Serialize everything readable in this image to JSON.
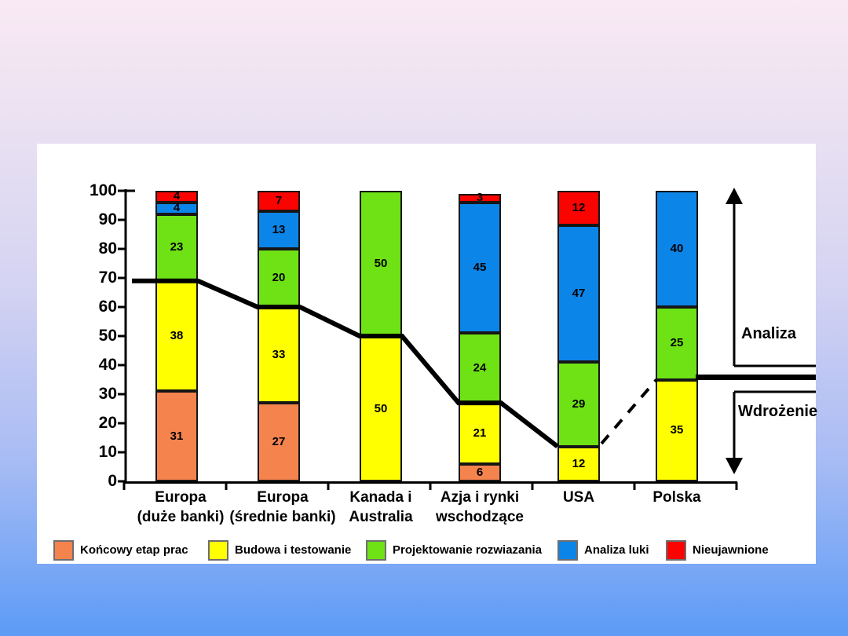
{
  "chart_data": {
    "type": "bar",
    "stacked": true,
    "title": "",
    "ylim": [
      0,
      100
    ],
    "yticks": [
      0,
      10,
      20,
      30,
      40,
      50,
      60,
      70,
      80,
      90,
      100
    ],
    "grid": false,
    "legend_position": "bottom",
    "categories": [
      {
        "lines": [
          "Europa",
          "(duże banki)"
        ]
      },
      {
        "lines": [
          "Europa",
          "(średnie banki)"
        ]
      },
      {
        "lines": [
          "Kanada i",
          "Australia"
        ]
      },
      {
        "lines": [
          "Azja i rynki",
          "wschodzące"
        ]
      },
      {
        "lines": [
          "USA"
        ]
      },
      {
        "lines": [
          "Polska"
        ]
      }
    ],
    "series": [
      {
        "name": "Końcowy etap prac",
        "color": "#f5834e",
        "values": [
          31,
          27,
          0,
          6,
          0,
          0
        ]
      },
      {
        "name": "Budowa i testowanie",
        "color": "#ffff00",
        "values": [
          38,
          33,
          50,
          21,
          12,
          35
        ]
      },
      {
        "name": "Projektowanie rozwiazania",
        "color": "#6ee214",
        "values": [
          23,
          20,
          50,
          24,
          29,
          25
        ]
      },
      {
        "name": "Analiza luki",
        "color": "#0c85e9",
        "values": [
          4,
          13,
          0,
          45,
          47,
          40
        ]
      },
      {
        "name": "Nieujawnione",
        "color": "#fb0300",
        "values": [
          4,
          7,
          0,
          3,
          12,
          0
        ]
      }
    ],
    "trend_line": {
      "style": "thick-solid",
      "color": "#000000",
      "values_at_bars": [
        69,
        60,
        50,
        27,
        12
      ]
    },
    "dashed_line": {
      "from_value": 13,
      "to_value": 35
    },
    "level_line": {
      "value": 35
    },
    "annotations": [
      {
        "id": "analiza",
        "text": "Analiza",
        "arrow": "up"
      },
      {
        "id": "wdrozenie",
        "text": "Wdrożenie",
        "arrow": "down"
      }
    ]
  }
}
